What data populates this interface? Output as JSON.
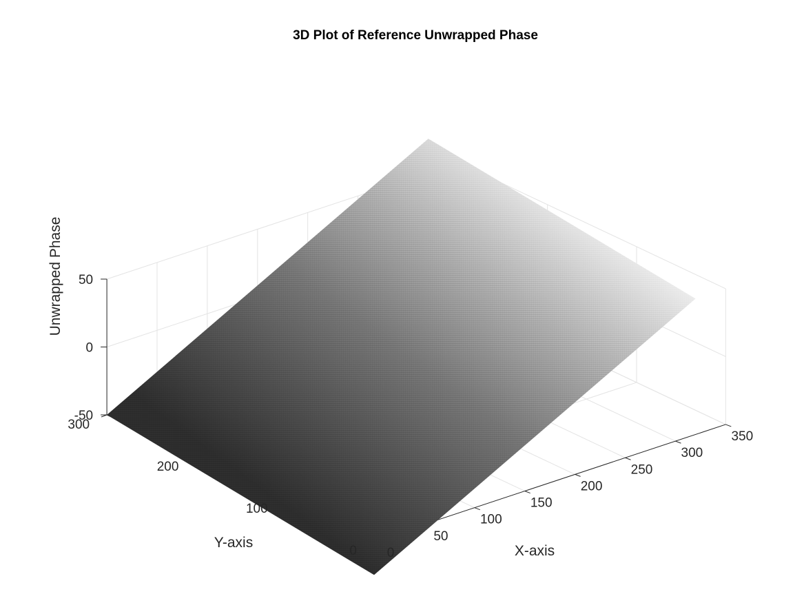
{
  "chart_data": {
    "type": "surface-3d",
    "title": "3D Plot of Reference Unwrapped Phase",
    "xlabel": "X-axis",
    "ylabel": "Y-axis",
    "zlabel": "Unwrapped Phase",
    "xlim": [
      0,
      350
    ],
    "ylim": [
      0,
      300
    ],
    "zlim": [
      -50,
      50
    ],
    "x_ticks": [
      0,
      50,
      100,
      150,
      200,
      250,
      300,
      350
    ],
    "y_ticks": [
      0,
      100,
      200,
      300
    ],
    "z_ticks": [
      -50,
      0,
      50
    ],
    "surface": {
      "x_range": [
        0,
        320
      ],
      "y_range": [
        0,
        300
      ],
      "corners": [
        {
          "x": 0,
          "y": 0,
          "z": -75
        },
        {
          "x": 0,
          "y": 300,
          "z": -50
        },
        {
          "x": 320,
          "y": 300,
          "z": 75
        },
        {
          "x": 320,
          "y": 0,
          "z": 50
        }
      ],
      "colormap": "gray",
      "grid": true
    },
    "grid": true
  }
}
